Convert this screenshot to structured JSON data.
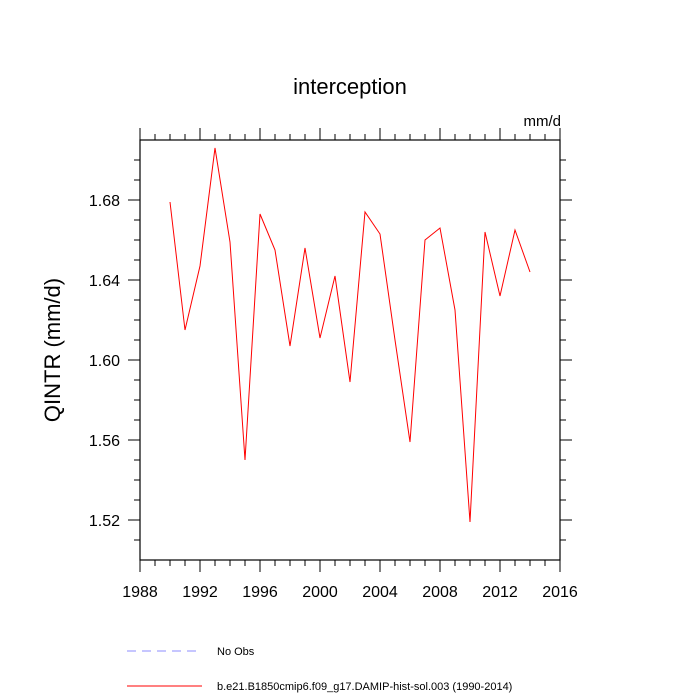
{
  "chart_data": {
    "type": "line",
    "title": "interception",
    "units_label": "mm/d",
    "xlabel": "",
    "ylabel": "QINTR  (mm/d)",
    "xlim": [
      1988,
      2016
    ],
    "ylim": [
      1.5,
      1.71
    ],
    "x_ticks": [
      1988,
      1992,
      1996,
      2000,
      2004,
      2008,
      2012,
      2016
    ],
    "y_ticks": [
      1.52,
      1.56,
      1.6,
      1.64,
      1.68
    ],
    "y_tick_labels": [
      "1.52",
      "1.56",
      "1.60",
      "1.64",
      "1.68"
    ],
    "grid": false,
    "series": [
      {
        "name": "b.e21.B1850cmip6.f09_g17.DAMIP-hist-sol.003 (1990-2014)",
        "color": "#ff0000",
        "style": "solid",
        "x": [
          1990,
          1991,
          1992,
          1993,
          1994,
          1995,
          1996,
          1997,
          1998,
          1999,
          2000,
          2001,
          2002,
          2003,
          2004,
          2005,
          2006,
          2007,
          2008,
          2009,
          2010,
          2011,
          2012,
          2013,
          2014
        ],
        "y": [
          1.679,
          1.615,
          1.647,
          1.706,
          1.659,
          1.55,
          1.673,
          1.655,
          1.607,
          1.656,
          1.611,
          1.642,
          1.589,
          1.674,
          1.663,
          1.61,
          1.559,
          1.66,
          1.666,
          1.625,
          1.519,
          1.664,
          1.632,
          1.665,
          1.644
        ]
      }
    ],
    "legend": [
      {
        "label": "No Obs",
        "color": "#8c8cff",
        "style": "dashed"
      },
      {
        "label": "b.e21.B1850cmip6.f09_g17.DAMIP-hist-sol.003 (1990-2014)",
        "color": "#ff0000",
        "style": "solid"
      }
    ],
    "legend_position": "bottom"
  }
}
